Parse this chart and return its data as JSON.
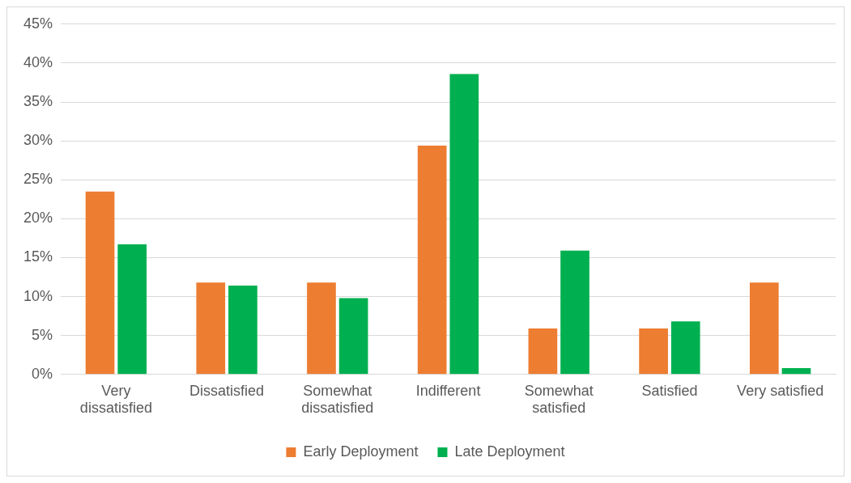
{
  "chart_data": {
    "type": "bar",
    "categories": [
      "Very dissatisfied",
      "Dissatisfied",
      "Somewhat dissatisfied",
      "Indifferent",
      "Somewhat satisfied",
      "Satisfied",
      "Very satisfied"
    ],
    "series": [
      {
        "name": "Early Deployment",
        "color": "#ed7d31",
        "values": [
          23.5,
          11.8,
          11.8,
          29.4,
          5.9,
          5.9,
          11.8
        ]
      },
      {
        "name": "Late Deployment",
        "color": "#00b050",
        "values": [
          16.7,
          11.4,
          9.8,
          38.6,
          15.9,
          6.8,
          0.8
        ]
      }
    ],
    "ylim": [
      0,
      45
    ],
    "yticks": [
      {
        "value": 0,
        "label": "0%"
      },
      {
        "value": 5,
        "label": "5%"
      },
      {
        "value": 10,
        "label": "10%"
      },
      {
        "value": 15,
        "label": "15%"
      },
      {
        "value": 20,
        "label": "20%"
      },
      {
        "value": 25,
        "label": "25%"
      },
      {
        "value": 30,
        "label": "30%"
      },
      {
        "value": 35,
        "label": "35%"
      },
      {
        "value": 40,
        "label": "40%"
      },
      {
        "value": 45,
        "label": "45%"
      }
    ],
    "grid": "y",
    "legend": "bottom"
  }
}
